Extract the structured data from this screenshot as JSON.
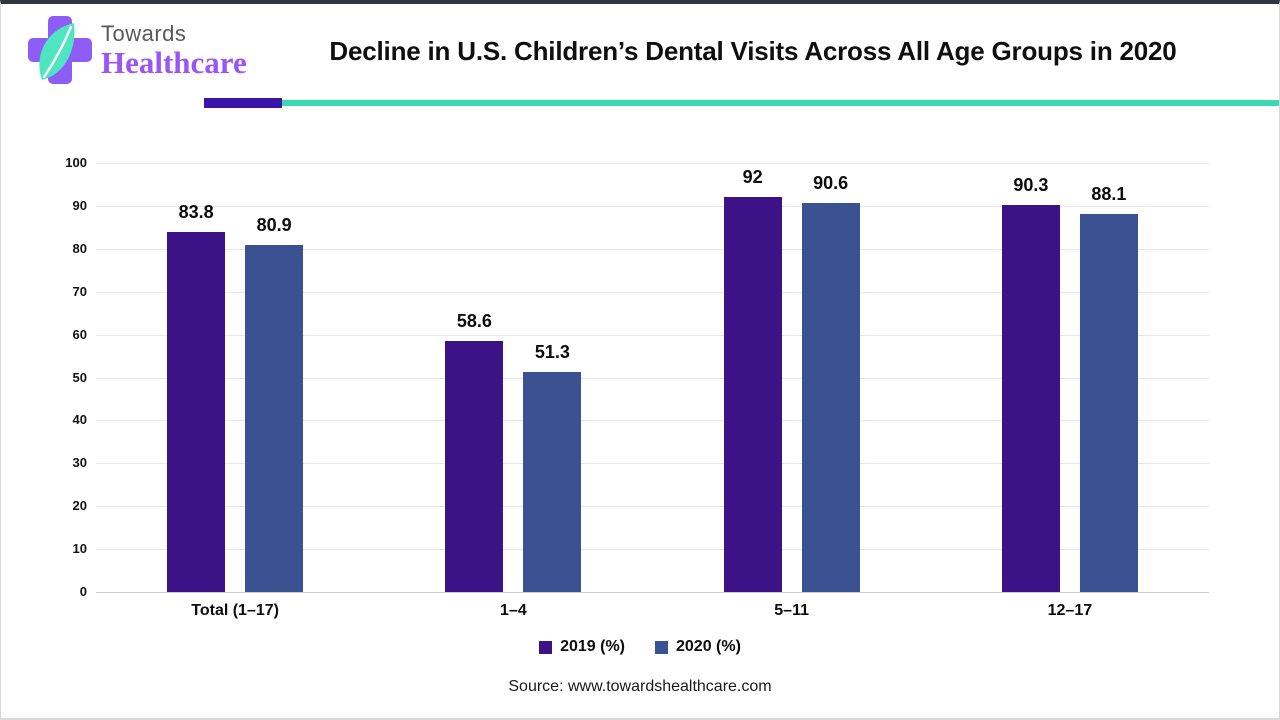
{
  "header": {
    "logo_top": "Towards",
    "logo_bottom": "Healthcare",
    "title": "Decline in U.S. Children’s Dental Visits Across All Age Groups in 2020"
  },
  "chart_data": {
    "type": "bar",
    "categories": [
      "Total (1–17)",
      "1–4",
      "5–11",
      "12–17"
    ],
    "series": [
      {
        "name": "2019 (%)",
        "color": "#3c1286",
        "values": [
          83.8,
          58.6,
          92,
          90.3
        ]
      },
      {
        "name": "2020 (%)",
        "color": "#3a5291",
        "values": [
          80.9,
          51.3,
          90.6,
          88.1
        ]
      }
    ],
    "ylim": [
      0,
      100
    ],
    "ytick_step": 10,
    "grid": true,
    "legend_position": "bottom",
    "xlabel": "",
    "ylabel": ""
  },
  "footer": {
    "source": "Source: www.towardshealthcare.com"
  },
  "colors": {
    "separator_purple": "#3a16a8",
    "separator_teal": "#3bd8b2",
    "logo_cross": "#8e5cf6",
    "logo_leaf": "#4fe5c1",
    "gridline": "#e6e6e6"
  }
}
